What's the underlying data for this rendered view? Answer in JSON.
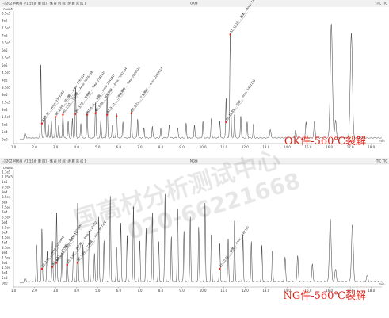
{
  "chart_data": [
    {
      "type": "line",
      "header_left": "[-] 2023年6月 #1日 [步 骤 四] - 储 存 时 间 [步 骤 完 成 ]",
      "header_center": "OK件",
      "header_right": "TIC TIC",
      "ylabel": "counts",
      "yticks": [
        "8.5e5",
        "8e5",
        "7.5e5",
        "7e5",
        "6.5e5",
        "6e5",
        "5.5e5",
        "5e5",
        "4.5e5",
        "4e5",
        "3.5e5",
        "3e5",
        "2.5e5",
        "2e5",
        "1.5e5",
        "1e5",
        "5e4",
        "0e0"
      ],
      "ylim": [
        0,
        880000
      ],
      "xticks": [
        "1.0",
        "2.0",
        "3.0",
        "4.0",
        "5.0",
        "6.0",
        "7.0",
        "8.0",
        "9.0",
        "10.0",
        "11.0",
        "12.0",
        "13.0",
        "14.0",
        "15.0",
        "16.0",
        "17.0",
        "18.0"
      ],
      "xlim": [
        1.0,
        18.5
      ],
      "xlabel": "min",
      "baseline": 12000,
      "peaks": [
        [
          1.55,
          30000,
          0.05
        ],
        [
          2.3,
          500000,
          0.03
        ],
        [
          2.5,
          150000,
          0.03
        ],
        [
          2.65,
          100000,
          0.03
        ],
        [
          2.8,
          120000,
          0.03
        ],
        [
          3.0,
          140000,
          0.03
        ],
        [
          3.15,
          90000,
          0.03
        ],
        [
          3.35,
          170000,
          0.03
        ],
        [
          3.6,
          110000,
          0.03
        ],
        [
          3.8,
          130000,
          0.03
        ],
        [
          3.95,
          340000,
          0.03
        ],
        [
          4.2,
          100000,
          0.03
        ],
        [
          4.5,
          180000,
          0.03
        ],
        [
          4.9,
          240000,
          0.03
        ],
        [
          5.15,
          120000,
          0.03
        ],
        [
          5.45,
          280000,
          0.03
        ],
        [
          5.7,
          90000,
          0.03
        ],
        [
          5.9,
          170000,
          0.03
        ],
        [
          6.2,
          110000,
          0.03
        ],
        [
          6.6,
          200000,
          0.03
        ],
        [
          6.9,
          130000,
          0.03
        ],
        [
          7.2,
          70000,
          0.03
        ],
        [
          7.6,
          80000,
          0.03
        ],
        [
          8.0,
          60000,
          0.03
        ],
        [
          8.4,
          90000,
          0.03
        ],
        [
          8.8,
          70000,
          0.03
        ],
        [
          9.2,
          100000,
          0.03
        ],
        [
          9.6,
          90000,
          0.03
        ],
        [
          10.0,
          110000,
          0.03
        ],
        [
          10.4,
          130000,
          0.03
        ],
        [
          10.8,
          120000,
          0.03
        ],
        [
          11.1,
          270000,
          0.03
        ],
        [
          11.3,
          720000,
          0.035
        ],
        [
          11.5,
          160000,
          0.03
        ],
        [
          11.8,
          150000,
          0.03
        ],
        [
          12.1,
          110000,
          0.03
        ],
        [
          12.4,
          90000,
          0.03
        ],
        [
          13.2,
          60000,
          0.04
        ],
        [
          14.4,
          50000,
          0.04
        ],
        [
          14.9,
          110000,
          0.04
        ],
        [
          15.3,
          110000,
          0.04
        ],
        [
          16.1,
          780000,
          0.07
        ],
        [
          16.3,
          120000,
          0.05
        ],
        [
          17.05,
          720000,
          0.07
        ]
      ],
      "markers": [
        [
          2.35,
          110000
        ],
        [
          3.0,
          155000
        ],
        [
          3.35,
          170000
        ],
        [
          3.95,
          175000
        ],
        [
          4.5,
          170000
        ],
        [
          4.9,
          180000
        ],
        [
          5.45,
          170000
        ],
        [
          5.9,
          160000
        ],
        [
          6.6,
          180000
        ],
        [
          11.1,
          120000
        ],
        [
          11.3,
          720000
        ]
      ],
      "annotations": [
        {
          "x": 2.35,
          "y": 110000,
          "text": "RT: 2.21 ... Area: 2349283"
        },
        {
          "x": 3.0,
          "y": 155000,
          "text": "RT: 2.66 ... 环戊酮 ... Area: 2761021"
        },
        {
          "x": 3.35,
          "y": 170000,
          "text": "RT: 2.95 ... 环己酮 ... Area: 2876558"
        },
        {
          "x": 3.95,
          "y": 175000,
          "text": "RT: 3.75 ... 苯甲醇 ... Area: 2781920"
        },
        {
          "x": 4.5,
          "y": 170000,
          "text": "RT: 4.21 ... 苯酚 ... Area: 2542811"
        },
        {
          "x": 4.9,
          "y": 180000,
          "text": "RT: 4.58 ... 甲基苯酚 ... Area: 2137334"
        },
        {
          "x": 5.45,
          "y": 170000,
          "text": "RT: 5.13 ... 二甲基苯酚 ... Area: 2809022"
        },
        {
          "x": 6.6,
          "y": 180000,
          "text": "RT: 6.21 ... 乙基苯酚 ... Area: 2283614"
        },
        {
          "x": 11.1,
          "y": 120000,
          "text": "RT: 10.85 ... 双酚 ... Area: 1452133"
        },
        {
          "x": 11.3,
          "y": 720000,
          "text": "RT: 11.20 ... 酯类 ... Area: 14553480"
        }
      ],
      "caption": "OK件-560℃裂解"
    },
    {
      "type": "line",
      "header_left": "[-] 2023年6月 #1日 [步 骤 四] - 储 存 时 间 [步 骤 完 成 ]",
      "header_center": "NG件",
      "header_right": "TIC TIC",
      "ylabel": "counts",
      "yticks": [
        "1.1e5",
        "1.05e5",
        "1e5",
        "9.5e4",
        "9e4",
        "8.5e4",
        "8e4",
        "7.5e4",
        "7e4",
        "6.5e4",
        "6e4",
        "5.5e4",
        "5e4",
        "4.5e4",
        "4e4",
        "3.5e4",
        "3e4",
        "2.5e4",
        "2e4",
        "1.5e4",
        "1e4",
        "5e3",
        "0e0"
      ],
      "ylim": [
        0,
        112000
      ],
      "xticks": [
        "1.0",
        "2.0",
        "3.0",
        "4.0",
        "5.0",
        "6.0",
        "7.0",
        "8.0",
        "9.0",
        "10.0",
        "11.0",
        "12.0",
        "13.0",
        "14.0",
        "15.0",
        "16.0",
        "17.0",
        "18.0"
      ],
      "xlim": [
        1.0,
        18.5
      ],
      "xlabel": "min",
      "baseline": 1500,
      "peaks": [
        [
          1.55,
          3000,
          0.05
        ],
        [
          2.1,
          36000,
          0.03
        ],
        [
          2.35,
          52000,
          0.03
        ],
        [
          2.6,
          30000,
          0.03
        ],
        [
          2.85,
          40000,
          0.03
        ],
        [
          3.05,
          68000,
          0.03
        ],
        [
          3.3,
          28000,
          0.03
        ],
        [
          3.55,
          38000,
          0.03
        ],
        [
          3.85,
          30000,
          0.03
        ],
        [
          4.05,
          78000,
          0.03
        ],
        [
          4.3,
          36000,
          0.03
        ],
        [
          4.6,
          50000,
          0.03
        ],
        [
          4.85,
          28000,
          0.03
        ],
        [
          5.05,
          64000,
          0.03
        ],
        [
          5.3,
          40000,
          0.03
        ],
        [
          5.6,
          84000,
          0.03
        ],
        [
          5.9,
          34000,
          0.03
        ],
        [
          6.1,
          58000,
          0.03
        ],
        [
          6.4,
          46000,
          0.03
        ],
        [
          6.7,
          74000,
          0.03
        ],
        [
          7.0,
          40000,
          0.03
        ],
        [
          7.3,
          52000,
          0.03
        ],
        [
          7.6,
          68000,
          0.03
        ],
        [
          7.9,
          40000,
          0.03
        ],
        [
          8.2,
          86000,
          0.03
        ],
        [
          8.5,
          44000,
          0.03
        ],
        [
          8.8,
          72000,
          0.03
        ],
        [
          9.1,
          50000,
          0.03
        ],
        [
          9.4,
          64000,
          0.03
        ],
        [
          9.8,
          54000,
          0.03
        ],
        [
          10.1,
          78000,
          0.03
        ],
        [
          10.4,
          46000,
          0.03
        ],
        [
          10.8,
          38000,
          0.03
        ],
        [
          11.2,
          42000,
          0.03
        ],
        [
          11.5,
          60000,
          0.03
        ],
        [
          11.9,
          46000,
          0.03
        ],
        [
          12.3,
          40000,
          0.03
        ],
        [
          12.8,
          36000,
          0.03
        ],
        [
          13.3,
          30000,
          0.03
        ],
        [
          13.9,
          24000,
          0.04
        ],
        [
          14.5,
          26000,
          0.04
        ],
        [
          15.2,
          18000,
          0.04
        ],
        [
          16.05,
          62000,
          0.06
        ],
        [
          16.3,
          12000,
          0.05
        ],
        [
          17.1,
          56000,
          0.06
        ],
        [
          17.8,
          6000,
          0.05
        ]
      ],
      "markers": [
        [
          2.35,
          14000
        ],
        [
          2.85,
          16000
        ],
        [
          3.05,
          20000
        ],
        [
          3.55,
          18000
        ],
        [
          4.05,
          20000
        ],
        [
          10.8,
          14000
        ]
      ],
      "annotations": [
        {
          "x": 2.35,
          "y": 14000,
          "text": "RT: 2.11 ... Area: 1029440"
        },
        {
          "x": 2.85,
          "y": 16000,
          "text": "RT: 2.52 ... 环戊酮 ... Area: 1203344"
        },
        {
          "x": 3.05,
          "y": 20000,
          "text": "RT: 2.68 ... Area: 862211"
        },
        {
          "x": 3.55,
          "y": 18000,
          "text": "RT: 3.41 ... 苯乙烯 ... Area: 1110452"
        },
        {
          "x": 4.05,
          "y": 20000,
          "text": "RT: 3.90 ... 二氯苯 ... Area: 977302"
        },
        {
          "x": 10.8,
          "y": 14000,
          "text": "RT: 10.72 ... 酯类 ... Area: 1042210"
        }
      ],
      "caption": "NG件-560℃裂解"
    }
  ],
  "watermark": {
    "line1": "国高材分析测试中心",
    "line2": "020-66221668"
  }
}
